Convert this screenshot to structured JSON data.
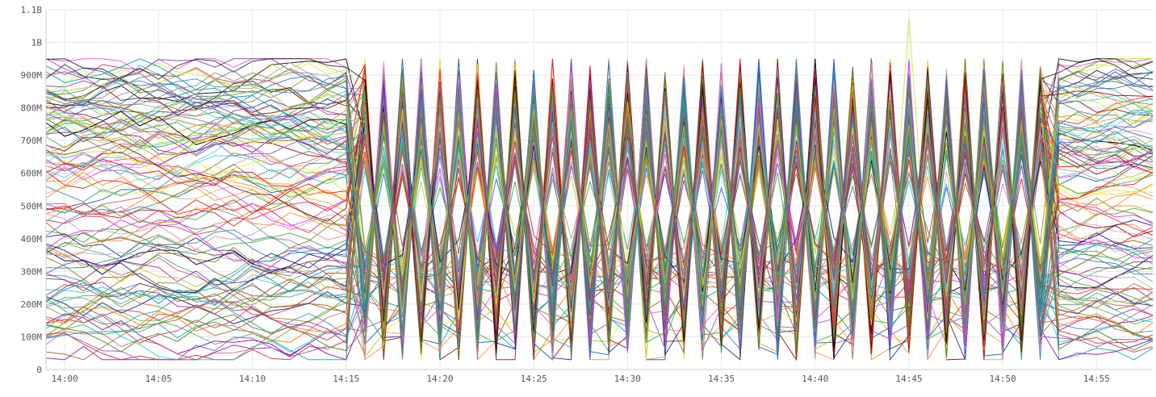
{
  "chart_data": {
    "type": "line",
    "title": "",
    "xlabel": "",
    "ylabel": "",
    "grid": true,
    "legend": "none",
    "x_range": [
      "13:59",
      "14:58"
    ],
    "x_tick_labels": [
      "14:00",
      "14:05",
      "14:10",
      "14:15",
      "14:20",
      "14:25",
      "14:30",
      "14:35",
      "14:40",
      "14:45",
      "14:50",
      "14:55"
    ],
    "y_tick_values": [
      0,
      100000000,
      200000000,
      300000000,
      400000000,
      500000000,
      600000000,
      700000000,
      800000000,
      900000000,
      1000000000,
      1100000000
    ],
    "y_tick_labels": [
      "0",
      "100M",
      "200M",
      "300M",
      "400M",
      "500M",
      "600M",
      "700M",
      "800M",
      "900M",
      "1B",
      "1.1B"
    ],
    "ylim": [
      0,
      1100000000
    ],
    "series_count": 120,
    "sample_interval_minutes": 1,
    "phases": [
      {
        "from": "13:59",
        "to": "14:15",
        "behavior": "stable, values spread 30M–940M"
      },
      {
        "from": "14:16",
        "to": "14:52",
        "behavior": "rapid oscillation between ~40M and ~950M"
      },
      {
        "from": "14:53",
        "to": "14:58",
        "behavior": "stable, values spread 60M–950M"
      }
    ],
    "peak": {
      "x": "14:45",
      "y": 1075000000
    },
    "palette": [
      "#e6194b",
      "#3cb44b",
      "#4363d8",
      "#f58231",
      "#911eb4",
      "#42d4f4",
      "#f032e6",
      "#bfef45",
      "#469990",
      "#9a6324",
      "#800000",
      "#808000",
      "#000075",
      "#000000",
      "#a9a9a9",
      "#ffe119",
      "#e08fb0",
      "#1f77b4",
      "#ff7f0e",
      "#2ca02c",
      "#d62728",
      "#9467bd",
      "#8c564b",
      "#7f7f7f",
      "#17becf",
      "#bcbd22",
      "#5b8c2a",
      "#c44e52",
      "#00a2a8",
      "#7b3294"
    ],
    "accent_colors": {
      "grid": "#e8e8e8",
      "axis": "#cccccc",
      "tick_text": "#555555"
    }
  }
}
